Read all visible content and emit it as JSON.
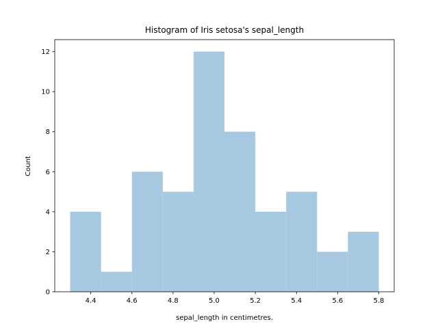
{
  "chart_data": {
    "type": "bar",
    "title": "Histogram of Iris setosa's sepal_length",
    "xlabel": "sepal_length in centimetres.",
    "ylabel": "Count",
    "bin_edges": [
      4.3,
      4.45,
      4.6,
      4.75,
      4.9,
      5.05,
      5.2,
      5.35,
      5.5,
      5.65,
      5.8
    ],
    "values": [
      4,
      1,
      6,
      5,
      12,
      8,
      4,
      5,
      2,
      3
    ],
    "xlim": [
      4.225,
      5.875
    ],
    "ylim": [
      0,
      12.6
    ],
    "x_ticks": [
      "4.4",
      "4.6",
      "4.8",
      "5.0",
      "5.2",
      "5.4",
      "5.6",
      "5.8"
    ],
    "y_ticks": [
      "0",
      "2",
      "4",
      "6",
      "8",
      "10",
      "12"
    ],
    "bar_color": "#a6c8e0",
    "grid": false,
    "legend": "none"
  }
}
